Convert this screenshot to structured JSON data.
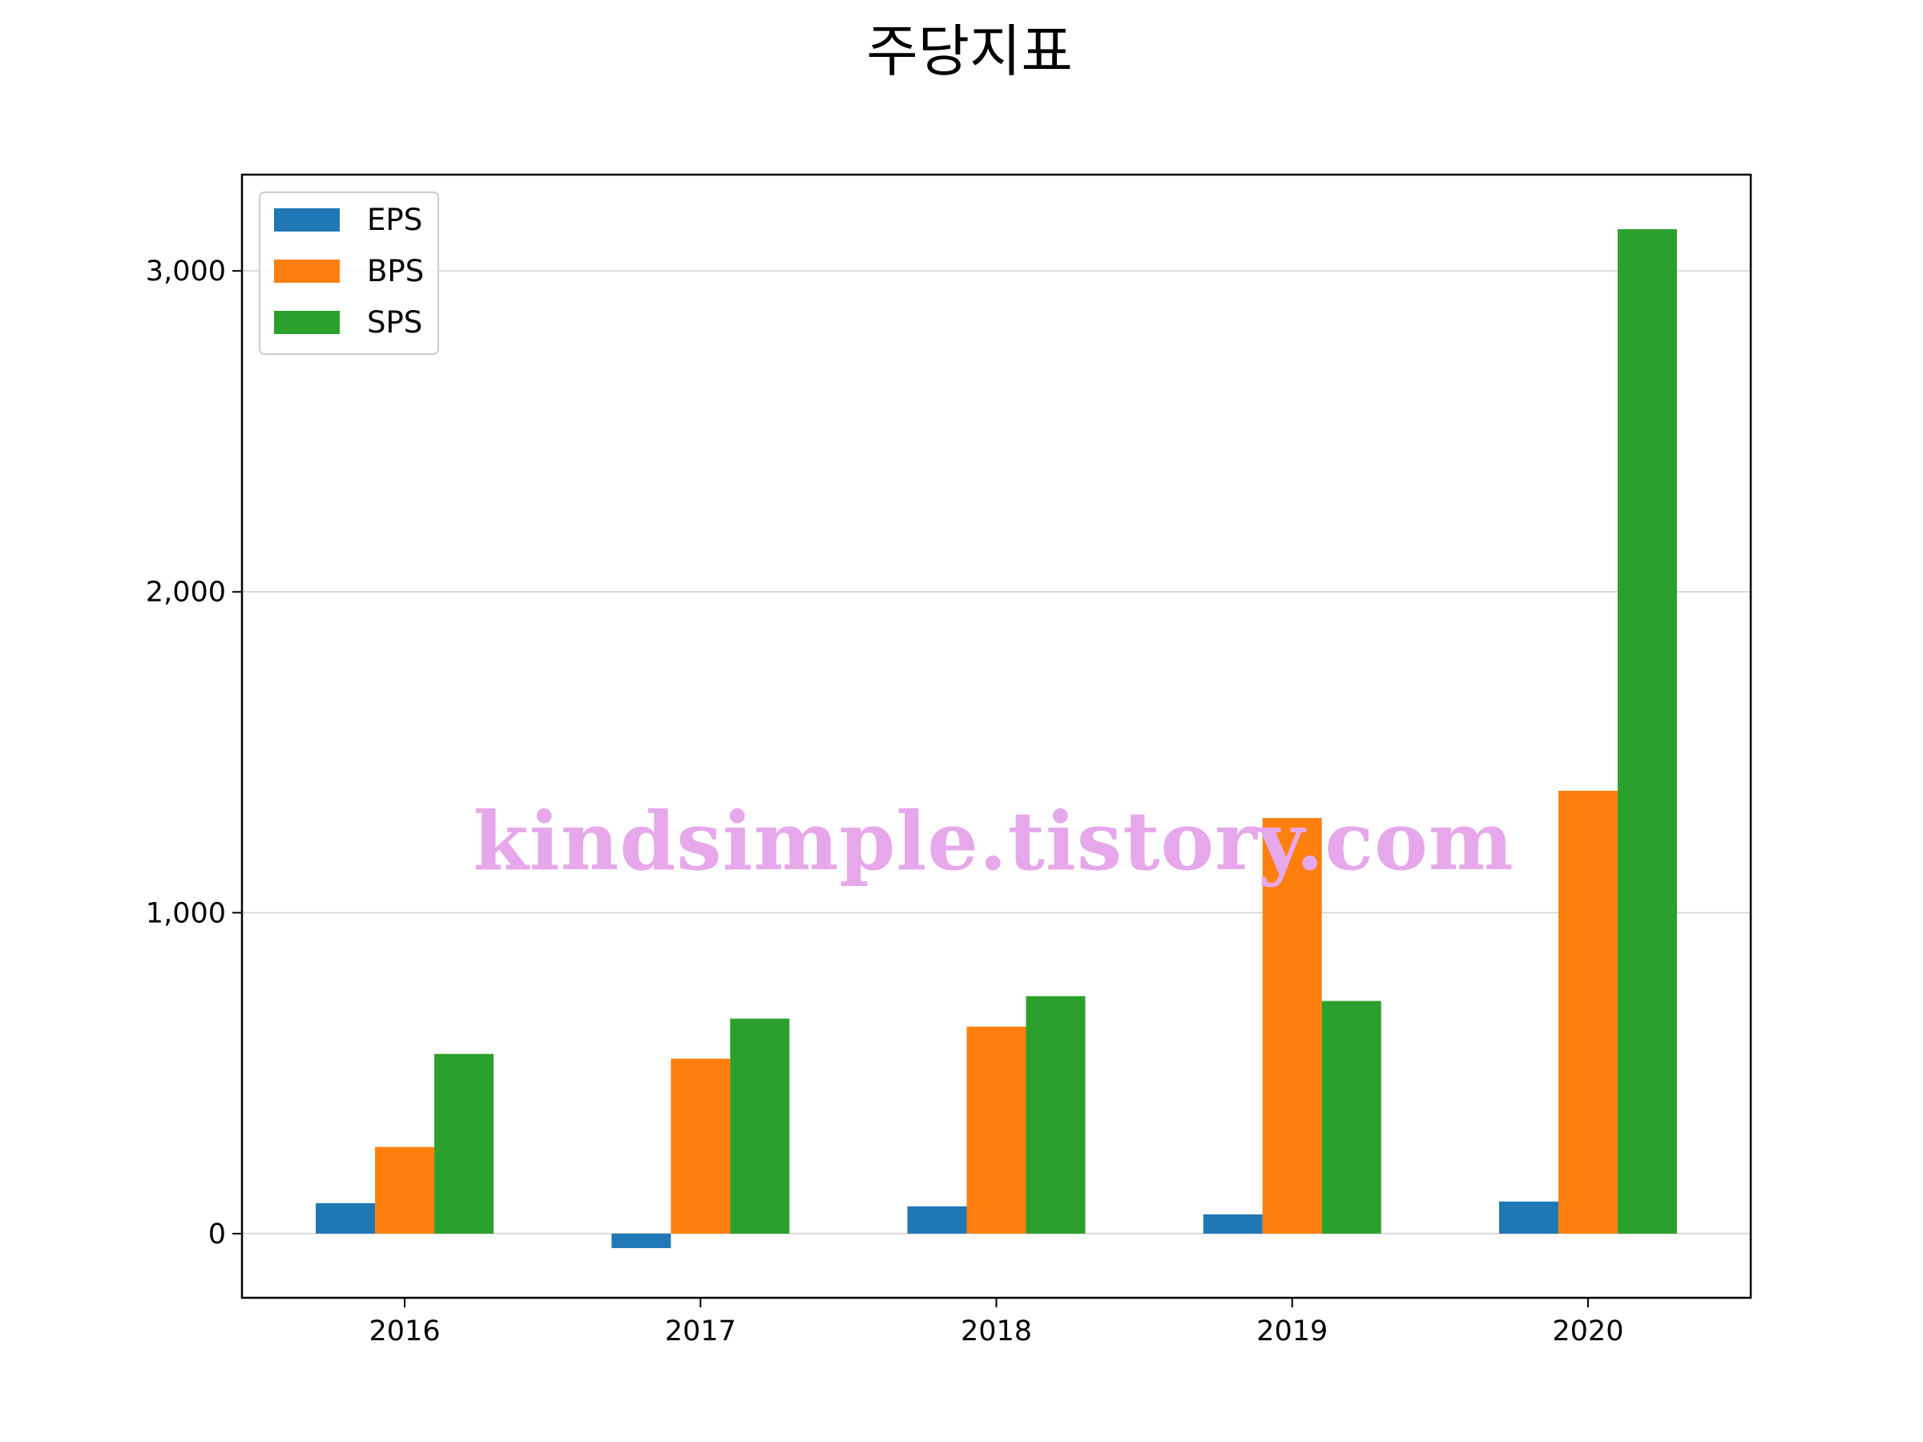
{
  "chart_data": {
    "type": "bar",
    "title": "주당지표",
    "xlabel": "",
    "ylabel": "",
    "categories": [
      "2016",
      "2017",
      "2018",
      "2019",
      "2020"
    ],
    "series": [
      {
        "name": "EPS",
        "color": "#1f77b4",
        "values": [
          95,
          -45,
          85,
          60,
          100
        ]
      },
      {
        "name": "BPS",
        "color": "#ff7f0e",
        "values": [
          270,
          545,
          645,
          1295,
          1380
        ]
      },
      {
        "name": "SPS",
        "color": "#2ca02c",
        "values": [
          560,
          670,
          740,
          725,
          3130
        ]
      }
    ],
    "ylim": [
      -200,
      3300
    ],
    "yticks": [
      0,
      1000,
      2000,
      3000
    ],
    "ytick_labels": [
      "0",
      "1,000",
      "2,000",
      "3,000"
    ],
    "grid": "horizontal",
    "legend_position": "top-left"
  },
  "watermark": "kindsimple.tistory.com"
}
